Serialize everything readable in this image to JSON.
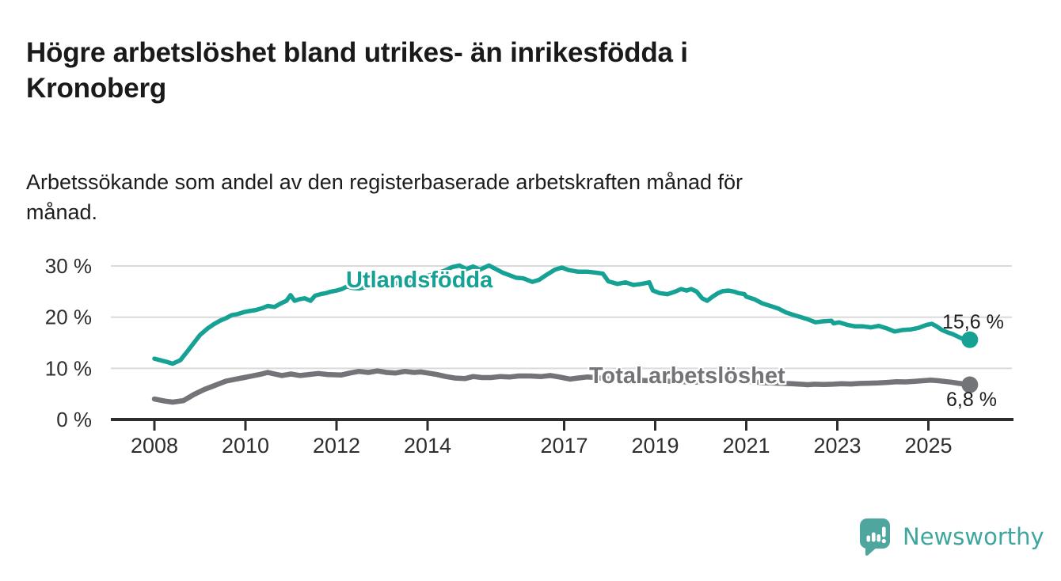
{
  "header": {
    "title": "Högre arbetslöshet bland utrikes- än inrikesfödda i\nKronoberg",
    "subtitle": "Arbetssökande som andel av den registerbaserade arbetskraften månad för\nmånad."
  },
  "footer": {
    "brand": "Newsworthy",
    "brand_color": "#3fa69d",
    "brand_icon": "speech-bubble-bar-chart-exclamation",
    "brand_icon_color": "#4ea69e"
  },
  "chart_data": {
    "type": "line",
    "title": "Högre arbetslöshet bland utrikes- än inrikesfödda i Kronoberg",
    "subtitle": "Arbetssökande som andel av den registerbaserade arbetskraften månad för månad.",
    "xlabel": "",
    "ylabel": "",
    "unit": "%",
    "grid": true,
    "grid_color": "#dadada",
    "axis_color": "#2d2d2d",
    "tick_label_color": "#2e2e2e",
    "legend_position": "inline-labels",
    "x_axis": {
      "ticks": [
        2008,
        2010,
        2012,
        2014,
        2017,
        2019,
        2021,
        2023,
        2025
      ],
      "labels": [
        "2008",
        "2010",
        "2012",
        "2014",
        "2017",
        "2019",
        "2021",
        "2023",
        "2025"
      ],
      "range": [
        2007.05,
        2026.8
      ]
    },
    "y_axis": {
      "ticks": [
        0,
        10,
        20,
        30
      ],
      "labels": [
        "0 %",
        "10 %",
        "20 %",
        "30 %"
      ],
      "gridlines": [
        10,
        20,
        30
      ],
      "range": [
        0,
        31.8
      ]
    },
    "series": [
      {
        "name": "Utlandsfödda",
        "label_text": "Utlandsfödda",
        "color": "#16a195",
        "end_label": "15,6 %",
        "last_value": 15.6,
        "line_width": 5.5,
        "points": [
          [
            2008.0,
            11.9
          ],
          [
            2008.17,
            11.5
          ],
          [
            2008.3,
            11.2
          ],
          [
            2008.4,
            10.9
          ],
          [
            2008.57,
            11.6
          ],
          [
            2008.73,
            13.4
          ],
          [
            2008.87,
            15.0
          ],
          [
            2009.0,
            16.5
          ],
          [
            2009.17,
            17.8
          ],
          [
            2009.3,
            18.6
          ],
          [
            2009.44,
            19.3
          ],
          [
            2009.57,
            19.8
          ],
          [
            2009.7,
            20.4
          ],
          [
            2009.83,
            20.6
          ],
          [
            2009.97,
            21.0
          ],
          [
            2010.09,
            21.2
          ],
          [
            2010.23,
            21.4
          ],
          [
            2010.38,
            21.8
          ],
          [
            2010.49,
            22.2
          ],
          [
            2010.64,
            22.0
          ],
          [
            2010.78,
            22.7
          ],
          [
            2010.9,
            23.2
          ],
          [
            2010.99,
            24.3
          ],
          [
            2011.08,
            23.2
          ],
          [
            2011.18,
            23.5
          ],
          [
            2011.3,
            23.7
          ],
          [
            2011.43,
            23.2
          ],
          [
            2011.53,
            24.2
          ],
          [
            2011.65,
            24.5
          ],
          [
            2011.77,
            24.7
          ],
          [
            2011.88,
            25.0
          ],
          [
            2012.0,
            25.2
          ],
          [
            2012.12,
            25.5
          ],
          [
            2012.23,
            26.0
          ],
          [
            2012.35,
            25.7
          ],
          [
            2012.5,
            25.6
          ],
          [
            2012.65,
            25.9
          ],
          [
            2012.8,
            26.2
          ],
          [
            2013.0,
            26.0
          ],
          [
            2013.3,
            26.6
          ],
          [
            2013.6,
            27.2
          ],
          [
            2013.9,
            27.8
          ],
          [
            2014.1,
            28.3
          ],
          [
            2014.35,
            29.0
          ],
          [
            2014.55,
            29.8
          ],
          [
            2014.7,
            30.1
          ],
          [
            2014.85,
            29.4
          ],
          [
            2015.0,
            29.9
          ],
          [
            2015.15,
            29.3
          ],
          [
            2015.35,
            30.1
          ],
          [
            2015.5,
            29.4
          ],
          [
            2015.65,
            28.7
          ],
          [
            2015.8,
            28.2
          ],
          [
            2015.95,
            27.7
          ],
          [
            2016.1,
            27.6
          ],
          [
            2016.3,
            26.9
          ],
          [
            2016.45,
            27.3
          ],
          [
            2016.6,
            28.2
          ],
          [
            2016.8,
            29.3
          ],
          [
            2016.95,
            29.7
          ],
          [
            2017.1,
            29.2
          ],
          [
            2017.3,
            28.9
          ],
          [
            2017.5,
            28.9
          ],
          [
            2017.7,
            28.7
          ],
          [
            2017.85,
            28.5
          ],
          [
            2017.97,
            27.0
          ],
          [
            2018.17,
            26.5
          ],
          [
            2018.35,
            26.8
          ],
          [
            2018.52,
            26.3
          ],
          [
            2018.7,
            26.5
          ],
          [
            2018.87,
            26.8
          ],
          [
            2018.95,
            25.2
          ],
          [
            2019.1,
            24.7
          ],
          [
            2019.27,
            24.5
          ],
          [
            2019.44,
            25.0
          ],
          [
            2019.57,
            25.5
          ],
          [
            2019.69,
            25.2
          ],
          [
            2019.79,
            25.5
          ],
          [
            2019.91,
            25.0
          ],
          [
            2020.03,
            23.7
          ],
          [
            2020.14,
            23.2
          ],
          [
            2020.26,
            24.0
          ],
          [
            2020.38,
            24.7
          ],
          [
            2020.49,
            25.1
          ],
          [
            2020.61,
            25.2
          ],
          [
            2020.73,
            25.0
          ],
          [
            2020.83,
            24.7
          ],
          [
            2020.96,
            24.5
          ],
          [
            2021.0,
            24.0
          ],
          [
            2021.18,
            23.5
          ],
          [
            2021.35,
            22.7
          ],
          [
            2021.53,
            22.2
          ],
          [
            2021.7,
            21.7
          ],
          [
            2021.88,
            20.9
          ],
          [
            2022.05,
            20.4
          ],
          [
            2022.17,
            20.1
          ],
          [
            2022.35,
            19.6
          ],
          [
            2022.52,
            19.0
          ],
          [
            2022.7,
            19.2
          ],
          [
            2022.87,
            19.3
          ],
          [
            2022.92,
            18.8
          ],
          [
            2023.04,
            19.0
          ],
          [
            2023.22,
            18.5
          ],
          [
            2023.39,
            18.2
          ],
          [
            2023.57,
            18.2
          ],
          [
            2023.74,
            18.0
          ],
          [
            2023.91,
            18.3
          ],
          [
            2024.09,
            17.8
          ],
          [
            2024.26,
            17.2
          ],
          [
            2024.43,
            17.5
          ],
          [
            2024.61,
            17.6
          ],
          [
            2024.78,
            17.9
          ],
          [
            2024.96,
            18.5
          ],
          [
            2025.08,
            18.7
          ],
          [
            2025.18,
            18.2
          ],
          [
            2025.3,
            17.5
          ],
          [
            2025.43,
            17.0
          ],
          [
            2025.53,
            16.7
          ],
          [
            2025.65,
            16.2
          ],
          [
            2025.77,
            15.7
          ],
          [
            2025.91,
            15.6
          ]
        ]
      },
      {
        "name": "Total arbetslöshet",
        "label_text": "Total arbetslöshet",
        "color": "#737478",
        "end_label": "6,8 %",
        "last_value": 6.8,
        "line_width": 6.5,
        "points": [
          [
            2008.0,
            4.0
          ],
          [
            2008.23,
            3.6
          ],
          [
            2008.4,
            3.4
          ],
          [
            2008.64,
            3.7
          ],
          [
            2008.87,
            4.9
          ],
          [
            2009.1,
            5.9
          ],
          [
            2009.34,
            6.7
          ],
          [
            2009.57,
            7.5
          ],
          [
            2009.79,
            7.9
          ],
          [
            2009.97,
            8.2
          ],
          [
            2010.14,
            8.5
          ],
          [
            2010.31,
            8.8
          ],
          [
            2010.49,
            9.2
          ],
          [
            2010.64,
            8.9
          ],
          [
            2010.8,
            8.6
          ],
          [
            2011.0,
            8.9
          ],
          [
            2011.2,
            8.6
          ],
          [
            2011.4,
            8.8
          ],
          [
            2011.6,
            9.0
          ],
          [
            2011.8,
            8.8
          ],
          [
            2012.1,
            8.7
          ],
          [
            2012.3,
            9.1
          ],
          [
            2012.49,
            9.4
          ],
          [
            2012.7,
            9.2
          ],
          [
            2012.9,
            9.5
          ],
          [
            2013.1,
            9.2
          ],
          [
            2013.3,
            9.1
          ],
          [
            2013.5,
            9.4
          ],
          [
            2013.7,
            9.2
          ],
          [
            2013.85,
            9.3
          ],
          [
            2014.0,
            9.1
          ],
          [
            2014.2,
            8.8
          ],
          [
            2014.4,
            8.4
          ],
          [
            2014.6,
            8.1
          ],
          [
            2014.82,
            8.0
          ],
          [
            2015.0,
            8.4
          ],
          [
            2015.2,
            8.2
          ],
          [
            2015.39,
            8.2
          ],
          [
            2015.6,
            8.4
          ],
          [
            2015.8,
            8.3
          ],
          [
            2016.0,
            8.5
          ],
          [
            2016.26,
            8.5
          ],
          [
            2016.5,
            8.4
          ],
          [
            2016.7,
            8.6
          ],
          [
            2016.9,
            8.3
          ],
          [
            2017.13,
            7.9
          ],
          [
            2017.3,
            8.1
          ],
          [
            2017.5,
            8.3
          ],
          [
            2017.7,
            8.2
          ],
          [
            2017.9,
            8.0
          ],
          [
            2018.2,
            7.9
          ],
          [
            2018.5,
            7.8
          ],
          [
            2018.8,
            7.6
          ],
          [
            2019.0,
            7.7
          ],
          [
            2019.3,
            7.5
          ],
          [
            2019.6,
            7.4
          ],
          [
            2019.9,
            7.3
          ],
          [
            2020.1,
            7.6
          ],
          [
            2020.4,
            7.9
          ],
          [
            2020.6,
            7.8
          ],
          [
            2020.9,
            7.6
          ],
          [
            2021.1,
            7.4
          ],
          [
            2021.4,
            7.2
          ],
          [
            2021.7,
            7.1
          ],
          [
            2022.0,
            7.0
          ],
          [
            2022.35,
            6.8
          ],
          [
            2022.5,
            6.9
          ],
          [
            2022.7,
            6.85
          ],
          [
            2022.9,
            6.9
          ],
          [
            2023.1,
            7.0
          ],
          [
            2023.3,
            6.95
          ],
          [
            2023.5,
            7.05
          ],
          [
            2023.7,
            7.1
          ],
          [
            2023.9,
            7.15
          ],
          [
            2024.1,
            7.25
          ],
          [
            2024.3,
            7.4
          ],
          [
            2024.5,
            7.35
          ],
          [
            2024.7,
            7.45
          ],
          [
            2024.9,
            7.6
          ],
          [
            2025.05,
            7.7
          ],
          [
            2025.2,
            7.6
          ],
          [
            2025.35,
            7.45
          ],
          [
            2025.5,
            7.3
          ],
          [
            2025.65,
            7.1
          ],
          [
            2025.78,
            6.95
          ],
          [
            2025.91,
            6.8
          ]
        ]
      }
    ]
  }
}
